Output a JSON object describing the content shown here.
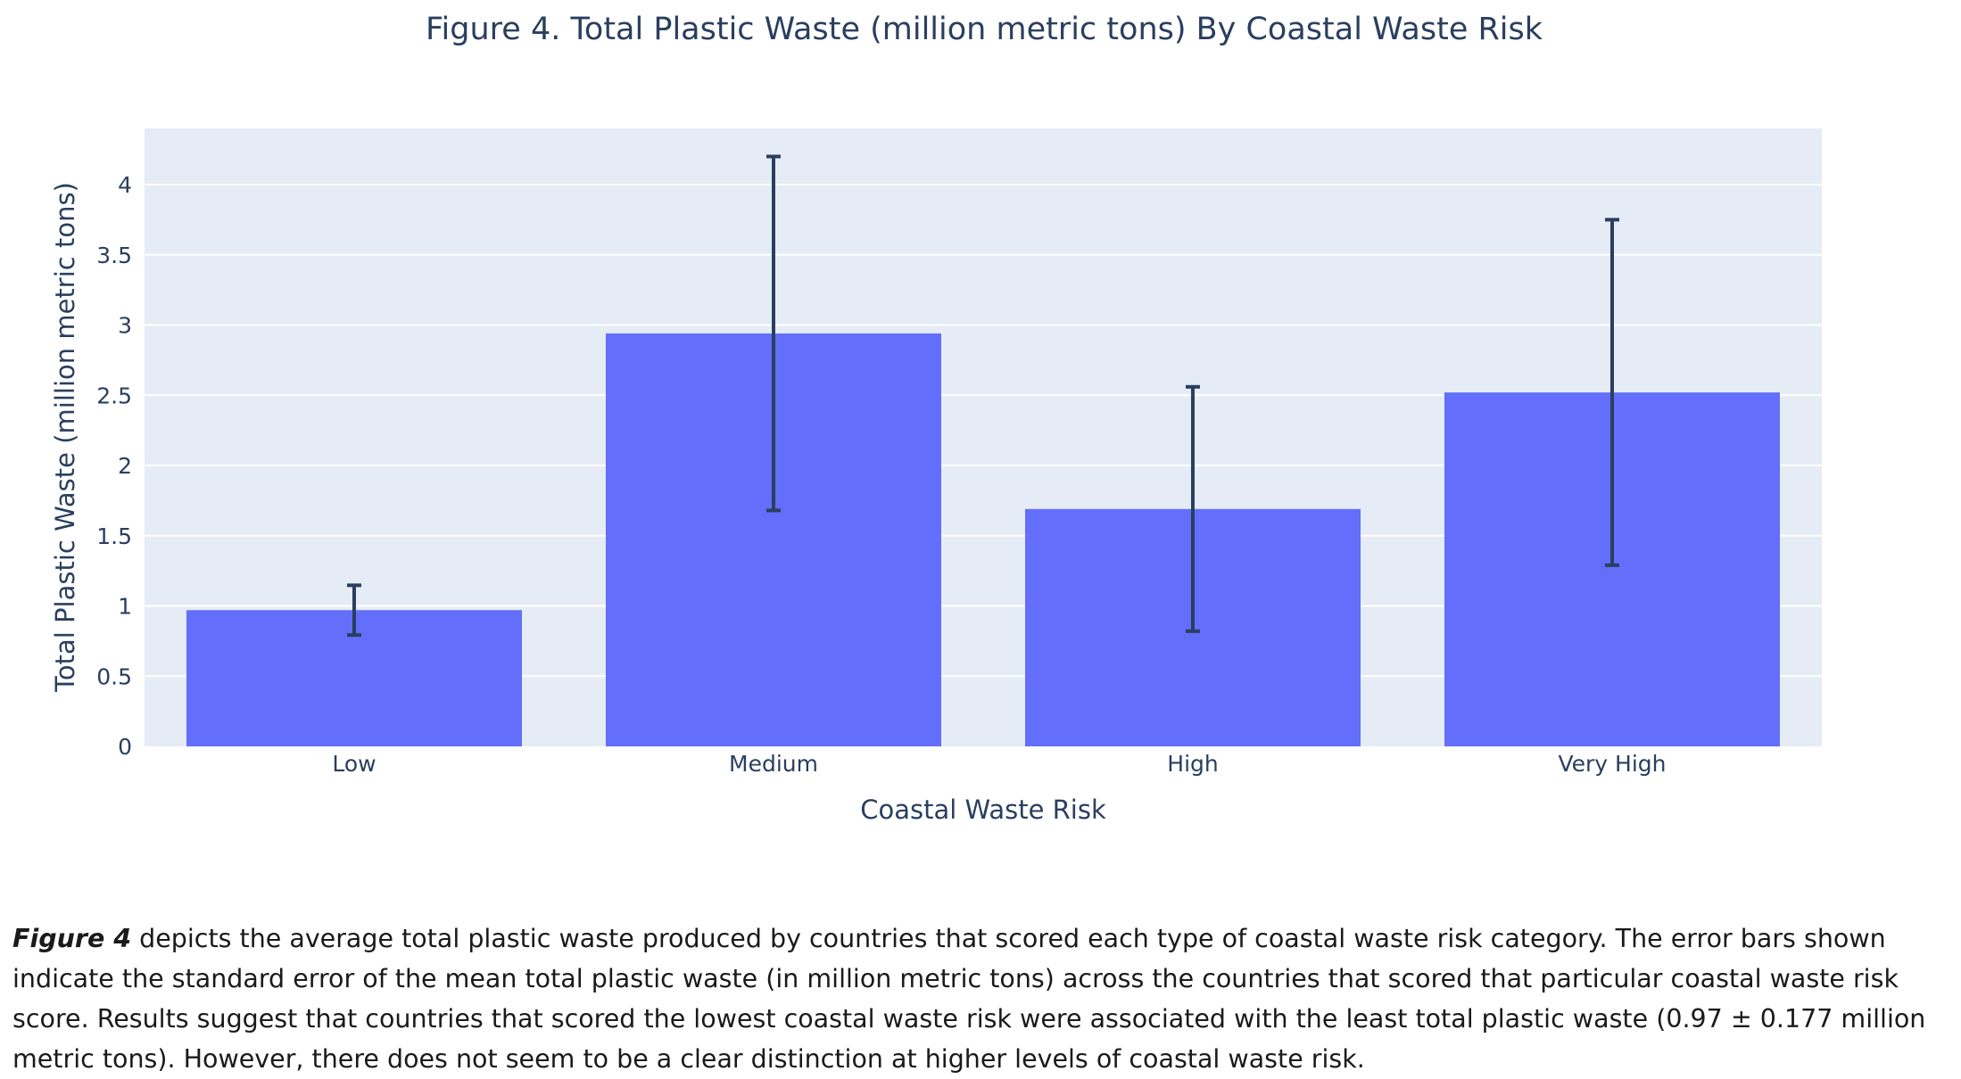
{
  "chart_data": {
    "type": "bar",
    "title": "Figure 4. Total Plastic Waste (million metric tons) By Coastal Waste Risk",
    "xlabel": "Coastal Waste Risk",
    "ylabel": "Total Plastic Waste (million metric tons)",
    "categories": [
      "Low",
      "Medium",
      "High",
      "Very High"
    ],
    "values": [
      0.97,
      2.94,
      1.69,
      2.52
    ],
    "error": [
      0.177,
      1.26,
      0.87,
      1.23
    ],
    "ylim": [
      0,
      4.4
    ],
    "yticks": [
      0,
      0.5,
      1,
      1.5,
      2,
      2.5,
      3,
      3.5,
      4
    ],
    "ytick_labels": [
      "0",
      "0.5",
      "1",
      "1.5",
      "2",
      "2.5",
      "3",
      "3.5",
      "4"
    ],
    "grid": true,
    "colors": {
      "bar": "#636efa",
      "plot_bg": "#e5ecf6",
      "grid": "#ffffff",
      "error_bar": "#2a3f5f",
      "text": "#2a3f5f"
    }
  },
  "caption": {
    "figure_ref": "Figure 4",
    "text": " depicts the average total plastic waste produced by countries that scored each type of coastal waste risk category. The error bars shown indicate the standard error of the mean total plastic waste (in million metric tons) across the countries that scored that particular coastal waste risk score. Results suggest that countries that scored the lowest coastal waste risk were associated with the least total plastic waste (0.97 ± 0.177 million metric tons). However, there does not seem to be a clear distinction at higher levels of coastal waste risk."
  }
}
